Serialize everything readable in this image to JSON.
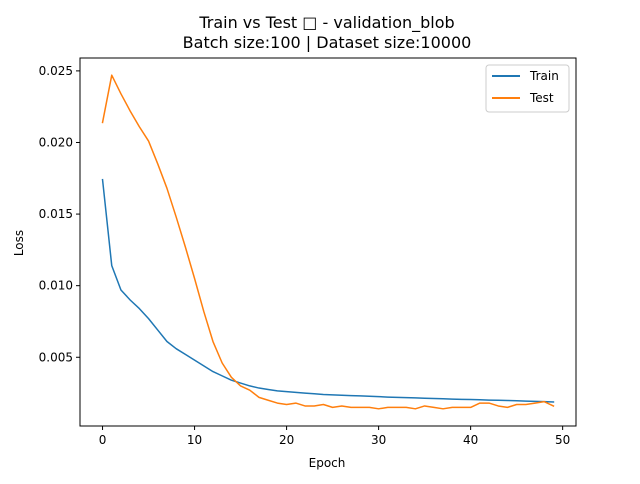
{
  "chart_data": {
    "type": "line",
    "title": "Train vs Test □ - validation_blob",
    "subtitle": "Batch size:100 | Dataset size:10000",
    "xlabel": "Epoch",
    "ylabel": "Loss",
    "xlim": [
      -2.45,
      51.45
    ],
    "ylim": [
      0.0002,
      0.0259
    ],
    "x_ticks": [
      0,
      10,
      20,
      30,
      40,
      50
    ],
    "y_ticks": [
      0.005,
      0.01,
      0.015,
      0.02,
      0.025
    ],
    "x_tick_labels": [
      "0",
      "10",
      "20",
      "30",
      "40",
      "50"
    ],
    "y_tick_labels": [
      "0.005",
      "0.010",
      "0.015",
      "0.020",
      "0.025"
    ],
    "grid": false,
    "legend_position": "top-right",
    "x": [
      0,
      1,
      2,
      3,
      4,
      5,
      6,
      7,
      8,
      9,
      10,
      11,
      12,
      13,
      14,
      15,
      16,
      17,
      18,
      19,
      20,
      21,
      22,
      23,
      24,
      25,
      26,
      27,
      28,
      29,
      30,
      31,
      32,
      33,
      34,
      35,
      36,
      37,
      38,
      39,
      40,
      41,
      42,
      43,
      44,
      45,
      46,
      47,
      48,
      49
    ],
    "series": [
      {
        "name": "Train",
        "color": "#1f77b4",
        "values": [
          0.0174,
          0.0114,
          0.0097,
          0.009,
          0.0084,
          0.0077,
          0.0069,
          0.0061,
          0.0056,
          0.0052,
          0.0048,
          0.0044,
          0.004,
          0.0037,
          0.0034,
          0.0032,
          0.003,
          0.00285,
          0.00275,
          0.00265,
          0.0026,
          0.00255,
          0.0025,
          0.00245,
          0.0024,
          0.00237,
          0.00235,
          0.00232,
          0.0023,
          0.00228,
          0.00225,
          0.00222,
          0.0022,
          0.00218,
          0.00216,
          0.00214,
          0.00212,
          0.0021,
          0.00208,
          0.00206,
          0.00205,
          0.00203,
          0.00201,
          0.002,
          0.00198,
          0.00196,
          0.00194,
          0.00192,
          0.0019,
          0.00188
        ]
      },
      {
        "name": "Test",
        "color": "#ff7f0e",
        "values": [
          0.0214,
          0.0247,
          0.0234,
          0.0222,
          0.0211,
          0.0201,
          0.0185,
          0.0168,
          0.0148,
          0.0127,
          0.0105,
          0.0082,
          0.0061,
          0.0046,
          0.0036,
          0.003,
          0.0027,
          0.0022,
          0.002,
          0.0018,
          0.0017,
          0.0018,
          0.0016,
          0.0016,
          0.0017,
          0.0015,
          0.0016,
          0.0015,
          0.0015,
          0.0015,
          0.0014,
          0.0015,
          0.0015,
          0.0015,
          0.0014,
          0.0016,
          0.0015,
          0.0014,
          0.0015,
          0.0015,
          0.0015,
          0.0018,
          0.0018,
          0.0016,
          0.0015,
          0.0017,
          0.0017,
          0.0018,
          0.0019,
          0.0016
        ]
      }
    ]
  }
}
